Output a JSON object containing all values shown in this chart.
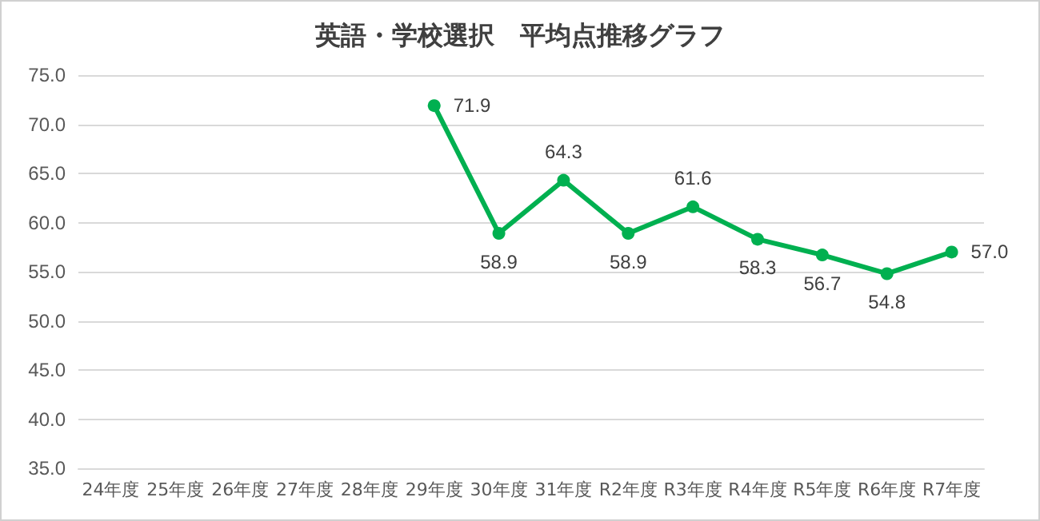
{
  "chart_data": {
    "type": "line",
    "title": "英語・学校選択　平均点推移グラフ",
    "categories": [
      "24年度",
      "25年度",
      "26年度",
      "27年度",
      "28年度",
      "29年度",
      "30年度",
      "31年度",
      "R2年度",
      "R3年度",
      "R4年度",
      "R5年度",
      "R6年度",
      "R7年度"
    ],
    "series": [
      {
        "color": "#00b050",
        "values": [
          null,
          null,
          null,
          null,
          null,
          71.9,
          58.9,
          64.3,
          58.9,
          61.6,
          58.3,
          56.7,
          54.8,
          57.0
        ],
        "value_labels": [
          null,
          null,
          null,
          null,
          null,
          "71.9",
          "58.9",
          "64.3",
          "58.9",
          "61.6",
          "58.3",
          "56.7",
          "54.8",
          "57.0"
        ]
      }
    ],
    "ylim": [
      35,
      75
    ],
    "yticks": [
      {
        "value": 35,
        "label": "35.0"
      },
      {
        "value": 40,
        "label": "40.0"
      },
      {
        "value": 45,
        "label": "45.0"
      },
      {
        "value": 50,
        "label": "50.0"
      },
      {
        "value": 55,
        "label": "55.0"
      },
      {
        "value": 60,
        "label": "60.0"
      },
      {
        "value": 65,
        "label": "65.0"
      },
      {
        "value": 70,
        "label": "70.0"
      },
      {
        "value": 75,
        "label": "75.0"
      }
    ],
    "grid": "y",
    "marker": "circle",
    "line_style": "solid"
  }
}
